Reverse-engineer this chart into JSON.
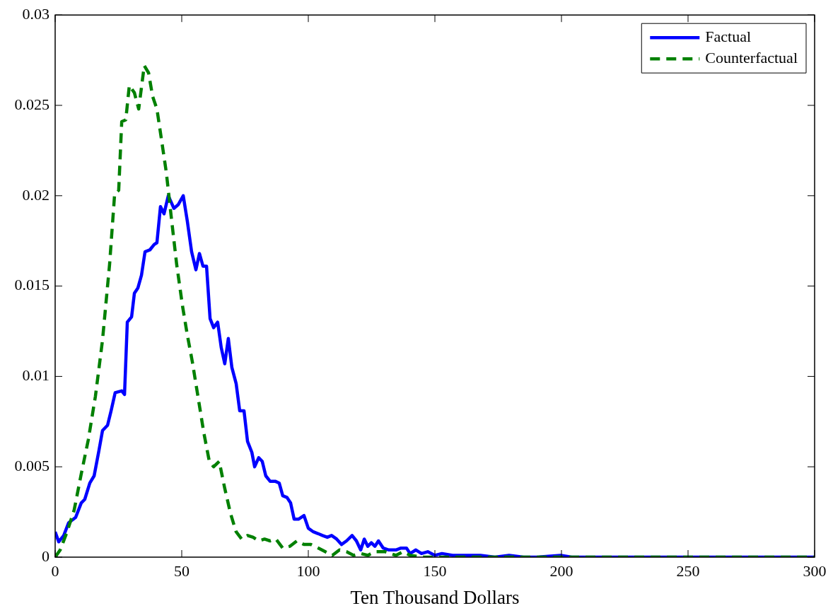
{
  "chart_data": {
    "type": "line",
    "xlabel": "Ten Thousand Dollars",
    "xlim": [
      0,
      300
    ],
    "xticks": [
      0,
      50,
      100,
      150,
      200,
      250,
      300
    ],
    "ylim": [
      0,
      0.03
    ],
    "yticks": [
      0,
      0.005,
      0.01,
      0.015,
      0.02,
      0.025,
      0.03
    ],
    "grid": false,
    "legend": "top right",
    "marker": "none",
    "series": [
      {
        "name": "Factual",
        "color": "#0000ff",
        "line_style": "solid",
        "x": [
          0,
          1.4,
          3.4,
          5.3,
          8.1,
          10.3,
          11.7,
          13.7,
          15.4,
          17.3,
          18.7,
          20.7,
          22.1,
          23.7,
          26.3,
          27.4,
          28.5,
          30.2,
          31.3,
          32.7,
          34.1,
          35.5,
          37.4,
          39.1,
          40.2,
          41.6,
          43,
          44.7,
          46.9,
          48.6,
          50.6,
          52.2,
          53.9,
          55.6,
          57,
          58.4,
          59.8,
          61.2,
          62.6,
          64.2,
          65.6,
          67,
          68.4,
          69.8,
          71.5,
          72.9,
          74.6,
          76,
          77.7,
          78.8,
          80.4,
          81.8,
          83.2,
          84.9,
          86.9,
          88.5,
          89.9,
          91.6,
          93,
          94.4,
          96.1,
          98.3,
          100,
          102,
          103.9,
          105.6,
          107.5,
          109.2,
          111.2,
          113.1,
          115.1,
          117.3,
          119,
          120.7,
          122.1,
          123.5,
          124.9,
          126.3,
          127.7,
          129.6,
          131.8,
          134.6,
          136.6,
          138.8,
          140.2,
          142.5,
          144.7,
          147.2,
          150,
          152.8,
          157,
          162.6,
          168,
          173.7,
          179.3,
          185,
          190.5,
          199.7,
          204,
          250,
          300
        ],
        "values": [
          0.0014,
          0.00085,
          0.0012,
          0.0019,
          0.0022,
          0.003,
          0.0032,
          0.0041,
          0.0045,
          0.0059,
          0.007,
          0.0073,
          0.0081,
          0.0091,
          0.0092,
          0.009,
          0.013,
          0.0133,
          0.0146,
          0.0149,
          0.0156,
          0.0169,
          0.017,
          0.0173,
          0.0174,
          0.0194,
          0.019,
          0.02,
          0.0193,
          0.0195,
          0.02,
          0.0186,
          0.0169,
          0.0159,
          0.0168,
          0.0161,
          0.0161,
          0.0132,
          0.0127,
          0.013,
          0.0116,
          0.0107,
          0.0121,
          0.0105,
          0.0096,
          0.0081,
          0.0081,
          0.0064,
          0.0058,
          0.005,
          0.0055,
          0.0053,
          0.0045,
          0.0042,
          0.0042,
          0.0041,
          0.0034,
          0.0033,
          0.003,
          0.0021,
          0.0021,
          0.0023,
          0.0016,
          0.0014,
          0.0013,
          0.0012,
          0.0011,
          0.0012,
          0.001,
          0.0007,
          0.0009,
          0.0012,
          0.0009,
          0.0004,
          0.001,
          0.0006,
          0.0008,
          0.0006,
          0.0009,
          0.0005,
          0.0004,
          0.0004,
          0.0005,
          0.0005,
          0.0002,
          0.0004,
          0.0002,
          0.0003,
          0.0001,
          0.0002,
          0.0001,
          0.0001,
          0.0001,
          0,
          0.0001,
          0,
          0,
          0.0001,
          0,
          0,
          0
        ]
      },
      {
        "name": "Counterfactual",
        "color": "#008000",
        "line_style": "dashed",
        "x": [
          0,
          2,
          4.7,
          7.5,
          10.3,
          13.1,
          15.9,
          18.7,
          21.5,
          23.5,
          25.1,
          26.3,
          27.9,
          29.3,
          31.3,
          33,
          35.2,
          36.9,
          38.5,
          40.2,
          41.9,
          43.9,
          45.8,
          48,
          50.3,
          52.2,
          54.2,
          56.4,
          58.7,
          60.9,
          62.6,
          64.8,
          67,
          69.3,
          71.5,
          73.7,
          76,
          78.2,
          80.4,
          82.7,
          84.9,
          87.2,
          89.9,
          92.7,
          95.5,
          98.3,
          101,
          104,
          106.7,
          109.5,
          112.3,
          115.1,
          117.9,
          120.7,
          123.5,
          126.3,
          130.4,
          134.6,
          137.4,
          140.2,
          145.8,
          200,
          250,
          300
        ],
        "values": [
          0,
          0.0004,
          0.0014,
          0.0026,
          0.0046,
          0.0065,
          0.0089,
          0.012,
          0.0162,
          0.0201,
          0.0203,
          0.0241,
          0.0242,
          0.0261,
          0.0257,
          0.0248,
          0.0272,
          0.0268,
          0.0255,
          0.0248,
          0.0232,
          0.0213,
          0.0189,
          0.0162,
          0.0139,
          0.0123,
          0.0108,
          0.0089,
          0.0069,
          0.0053,
          0.005,
          0.0053,
          0.0038,
          0.0024,
          0.0014,
          0.001,
          0.0012,
          0.0011,
          0.0009,
          0.001,
          0.0009,
          0.001,
          0.0005,
          0.0006,
          0.0009,
          0.0007,
          0.0007,
          0.0005,
          0.0003,
          0.0001,
          0.0004,
          0.0003,
          0.0001,
          0.0002,
          0.0001,
          0.0003,
          0.0003,
          0.0001,
          0.0003,
          0.0001,
          0,
          0,
          0,
          0
        ]
      }
    ]
  }
}
